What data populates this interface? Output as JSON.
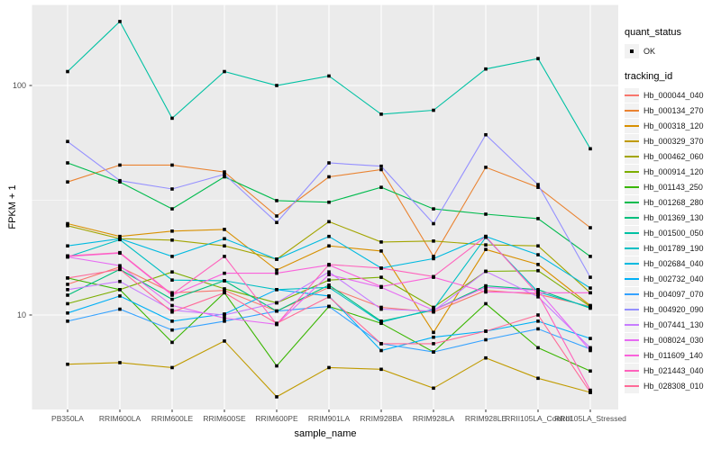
{
  "figure": {
    "y_axis_title": "FPKM + 1",
    "x_axis_title": "sample_name",
    "legend": {
      "quant_title": "quant_status",
      "quant_ok_label": "OK",
      "quant_marker": "black-square",
      "tracking_title": "tracking_id"
    },
    "colors": {
      "panel_background": "#EBEBEB",
      "gridline": "#FFFFFF",
      "tick_text": "#4D4D4D",
      "point": "#000000",
      "legend_key_background": "#F2F2F2"
    }
  },
  "chart_data": {
    "type": "line",
    "title": "",
    "xlabel": "sample_name",
    "ylabel": "FPKM + 1",
    "y_scale": "log10",
    "y_ticks": [
      100,
      10
    ],
    "y_minor_ticks": [
      31.6
    ],
    "ylim_log": [
      3.9,
      225
    ],
    "grid": true,
    "legend_position": "right",
    "point_marker": "black-square",
    "categories": [
      "PB350LA",
      "RRIM600LA",
      "RRIM600LE",
      "RRIM600SE",
      "RRIM600PE",
      "RRIM901LA",
      "RRIM928BA",
      "RRIM928LA",
      "RRIM928LE",
      "RRII105LA_Control",
      "RRII105LA_Stressed"
    ],
    "series": [
      {
        "name": "Hb_000044_040",
        "color": "#F8766D",
        "values": [
          13.6,
          16.2,
          12.5,
          12.8,
          10.4,
          13.2,
          10.8,
          10.3,
          12.8,
          12.3,
          10.9
        ]
      },
      {
        "name": "Hb_000134_270",
        "color": "#EA8331",
        "values": [
          38,
          45,
          45,
          42,
          27,
          40,
          43,
          18,
          44,
          36,
          24
        ]
      },
      {
        "name": "Hb_000318_120",
        "color": "#D89000",
        "values": [
          25,
          22,
          23.2,
          23.6,
          15.7,
          20,
          19,
          8.4,
          19.3,
          16.6,
          11
        ]
      },
      {
        "name": "Hb_000329_370",
        "color": "#C09B00",
        "values": [
          6.1,
          6.2,
          5.9,
          7.7,
          4.4,
          5.9,
          5.8,
          4.8,
          6.5,
          5.3,
          4.6
        ]
      },
      {
        "name": "Hb_000462_060",
        "color": "#A3A500",
        "values": [
          24.5,
          21.5,
          21.2,
          20,
          17.5,
          25.5,
          20.8,
          21,
          20.2,
          20,
          12.5
        ]
      },
      {
        "name": "Hb_000914_120",
        "color": "#7CAE00",
        "values": [
          11.2,
          12.9,
          15.4,
          13,
          11.3,
          14.2,
          14.6,
          10.8,
          15.5,
          15.6,
          10.9
        ]
      },
      {
        "name": "Hb_001143_250",
        "color": "#39B600",
        "values": [
          14.5,
          12.9,
          7.6,
          12.5,
          6.0,
          10.9,
          9.2,
          6.9,
          11.2,
          7.2,
          5.7
        ]
      },
      {
        "name": "Hb_001268_280",
        "color": "#00BB4E",
        "values": [
          46,
          38,
          29,
          40,
          31.5,
          31,
          36,
          29,
          27.5,
          26.3,
          18
        ]
      },
      {
        "name": "Hb_001369_130",
        "color": "#00BF7D",
        "values": [
          12.2,
          15.8,
          11.7,
          14.1,
          10.4,
          13.5,
          9.4,
          10.5,
          13.4,
          12.9,
          10.7
        ]
      },
      {
        "name": "Hb_001500_050",
        "color": "#00C1A3",
        "values": [
          115,
          190,
          72,
          115,
          100,
          110,
          75,
          78,
          118,
          131,
          53
        ]
      },
      {
        "name": "Hb_001789_190",
        "color": "#00BFC4",
        "values": [
          17.9,
          21.3,
          14.2,
          14.1,
          12.9,
          13.2,
          9.3,
          10.6,
          21.8,
          12.6,
          10.8
        ]
      },
      {
        "name": "Hb_002684_040",
        "color": "#00BAE0",
        "values": [
          20,
          21.5,
          18,
          21.5,
          17.5,
          22,
          16,
          17.6,
          22,
          18.3,
          13.1
        ]
      },
      {
        "name": "Hb_002732_040",
        "color": "#00B0F6",
        "values": [
          10.2,
          12.1,
          9.4,
          10.1,
          12.9,
          12.1,
          7.0,
          8.0,
          8.5,
          9.4,
          7.9
        ]
      },
      {
        "name": "Hb_004097_070",
        "color": "#35A2FF",
        "values": [
          9.4,
          10.6,
          8.6,
          9.4,
          10.4,
          10.9,
          7.5,
          6.9,
          7.8,
          8.7,
          7.1
        ]
      },
      {
        "name": "Hb_004920_090",
        "color": "#9590FF",
        "values": [
          57,
          38.5,
          35.4,
          41,
          25.3,
          46,
          44.5,
          25,
          61,
          37,
          14.6
        ]
      },
      {
        "name": "Hb_007441_130",
        "color": "#C77CFF",
        "values": [
          12.9,
          14.0,
          10.5,
          10.0,
          11.3,
          15.4,
          10.6,
          10.4,
          15.5,
          12.0,
          7.2
        ]
      },
      {
        "name": "Hb_008024_030",
        "color": "#E76BF3",
        "values": [
          17.9,
          16.4,
          11.0,
          9.7,
          9.1,
          15.0,
          13.2,
          10.5,
          13.2,
          12.8,
          7.0
        ]
      },
      {
        "name": "Hb_011609_140",
        "color": "#FA62DB",
        "values": [
          18.0,
          18.6,
          12.2,
          15.2,
          15.2,
          16.5,
          13.3,
          14.6,
          12.6,
          12.5,
          12.5
        ]
      },
      {
        "name": "Hb_021443_040",
        "color": "#FF62BC",
        "values": [
          18.1,
          18.7,
          12.3,
          18.0,
          9.1,
          16.6,
          16.0,
          14.7,
          22.0,
          12.3,
          4.7
        ]
      },
      {
        "name": "Hb_028308_010",
        "color": "#FF6A98",
        "values": [
          14.5,
          15.8,
          10.3,
          12.5,
          9.2,
          12.0,
          7.5,
          7.5,
          8.5,
          10.0,
          4.6
        ]
      }
    ]
  }
}
